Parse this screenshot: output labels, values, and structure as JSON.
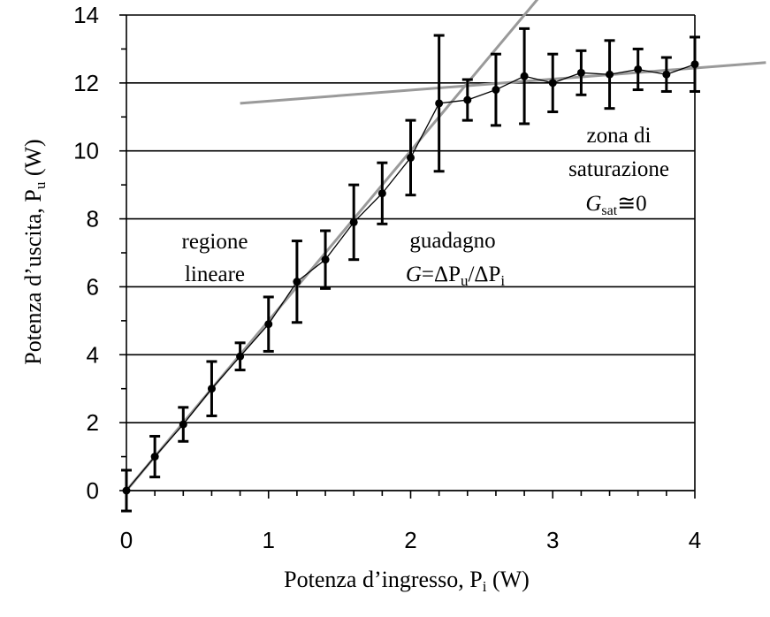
{
  "chart_data": {
    "type": "scatter",
    "x": [
      0,
      0.2,
      0.4,
      0.6,
      0.8,
      1.0,
      1.2,
      1.4,
      1.6,
      1.8,
      2.0,
      2.2,
      2.4,
      2.6,
      2.8,
      3.0,
      3.2,
      3.4,
      3.6,
      3.8,
      4.0
    ],
    "y": [
      0,
      1.0,
      1.95,
      3.0,
      3.95,
      4.9,
      6.15,
      6.8,
      7.9,
      8.75,
      9.8,
      11.4,
      11.5,
      11.8,
      12.2,
      12.0,
      12.3,
      12.25,
      12.4,
      12.25,
      12.55
    ],
    "yerr": [
      0.6,
      0.6,
      0.5,
      0.8,
      0.4,
      0.8,
      1.2,
      0.85,
      1.1,
      0.9,
      1.1,
      2.0,
      0.6,
      1.05,
      1.4,
      0.85,
      0.65,
      1.0,
      0.6,
      0.5,
      0.8
    ],
    "fits": [
      {
        "x": [
          0,
          2.95
        ],
        "y": [
          0,
          14.75
        ]
      },
      {
        "x": [
          0.8,
          4.5
        ],
        "y": [
          11.4,
          12.6
        ]
      }
    ],
    "xlim": [
      0,
      4
    ],
    "ylim": [
      0,
      14
    ],
    "xticks": [
      "0",
      "1",
      "2",
      "3",
      "4"
    ],
    "yticks": [
      "0",
      "2",
      "4",
      "6",
      "8",
      "10",
      "12",
      "14"
    ],
    "xlabel": {
      "text": "Potenza d’ingresso, ",
      "sym": "P",
      "sub": "i",
      "unit": " (W)"
    },
    "ylabel": {
      "text": "Potenza d’uscita, ",
      "sym": "P",
      "sub": "u",
      "unit": " (W)"
    },
    "grid": "horizontal",
    "annotations": {
      "linear_1": "regione",
      "linear_2": "lineare",
      "gain_1": "guadagno",
      "gain_2": {
        "G": "G",
        "eq": "=ΔP",
        "u": "u",
        "div": "/ΔP",
        "i": "i"
      },
      "sat_1": "zona di",
      "sat_2": "saturazione",
      "sat_3": {
        "G": "G",
        "sub": "sat",
        "rest": "≅0"
      }
    }
  }
}
